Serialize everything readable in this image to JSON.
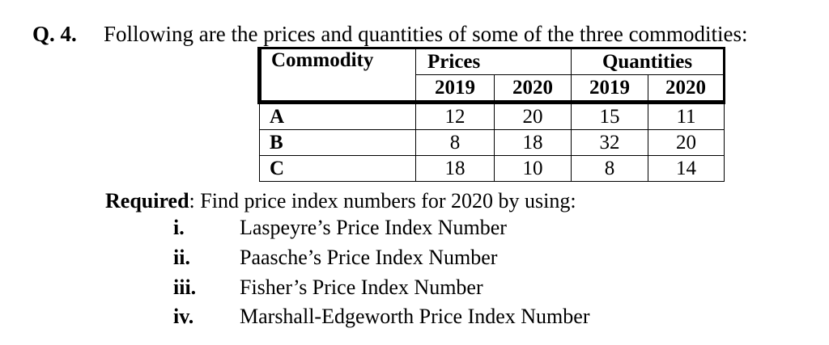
{
  "question": {
    "number": "Q. 4.",
    "text": "Following are the prices and quantities of some of the three commodities:"
  },
  "table": {
    "headers": {
      "commodity": "Commodity",
      "prices": "Prices",
      "quantities": "Quantities",
      "years": [
        "2019",
        "2020",
        "2019",
        "2020"
      ]
    },
    "rows": [
      {
        "name": "A",
        "cells": [
          "12",
          "20",
          "15",
          "11"
        ]
      },
      {
        "name": "B",
        "cells": [
          "8",
          "18",
          "32",
          "20"
        ]
      },
      {
        "name": "C",
        "cells": [
          "18",
          "10",
          "8",
          "14"
        ]
      }
    ]
  },
  "required": {
    "label": "Required",
    "text": ": Find price index numbers for 2020 by using:"
  },
  "options": [
    {
      "num": "i.",
      "text": "Laspeyre’s Price Index Number"
    },
    {
      "num": "ii.",
      "text": "Paasche’s Price Index Number"
    },
    {
      "num": "iii.",
      "text": "Fisher’s Price Index Number"
    },
    {
      "num": "iv.",
      "text": "Marshall-Edgeworth Price Index Number"
    }
  ]
}
